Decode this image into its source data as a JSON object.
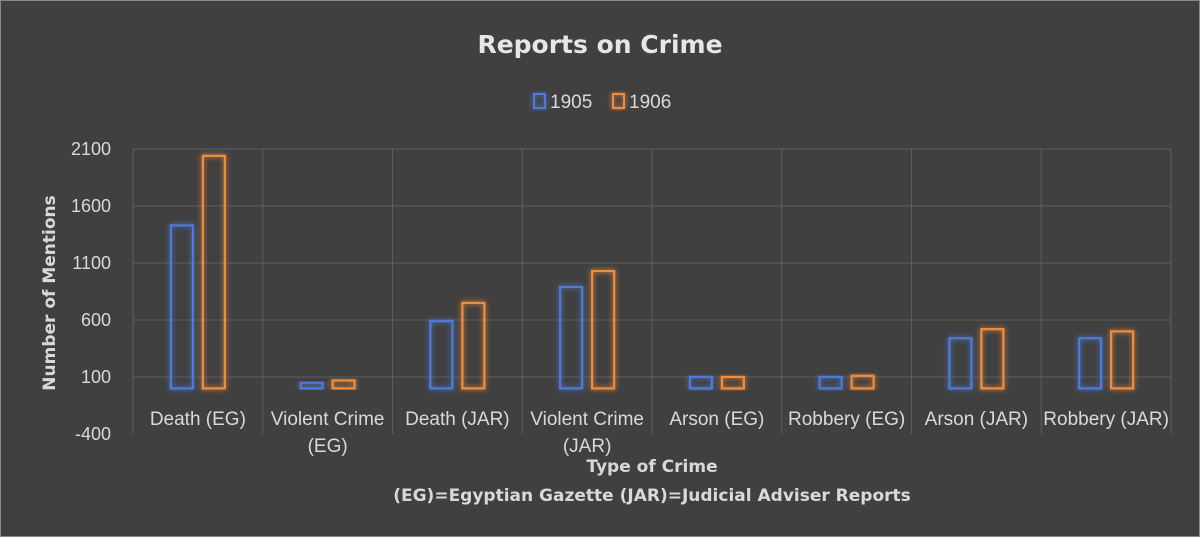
{
  "chart_data": {
    "type": "bar",
    "title": "Reports on Crime",
    "xlabel": "Type of Crime",
    "xlabel_note": "(EG)=Egyptian Gazette (JAR)=Judicial Adviser Reports",
    "ylabel": "Number of Mentions",
    "ylim": [
      -400,
      2100
    ],
    "yticks": [
      2100,
      1600,
      1100,
      600,
      100,
      -400
    ],
    "grid": true,
    "legend_position": "top",
    "categories": [
      [
        "Death (EG)"
      ],
      [
        "Violent Crime",
        "(EG)"
      ],
      [
        "Death (JAR)"
      ],
      [
        "Violent Crime",
        "(JAR)"
      ],
      [
        "Arson (EG)"
      ],
      [
        "Robbery (EG)"
      ],
      [
        "Arson (JAR)"
      ],
      [
        "Robbery (JAR)"
      ]
    ],
    "series": [
      {
        "name": "1905",
        "color": "#4f7ad6",
        "glow": "#2f5fcf",
        "values": [
          1430,
          50,
          590,
          890,
          100,
          100,
          440,
          440
        ]
      },
      {
        "name": "1906",
        "color": "#f08c3c",
        "glow": "#e86f10",
        "values": [
          2040,
          70,
          750,
          1030,
          100,
          110,
          520,
          500
        ]
      }
    ]
  }
}
